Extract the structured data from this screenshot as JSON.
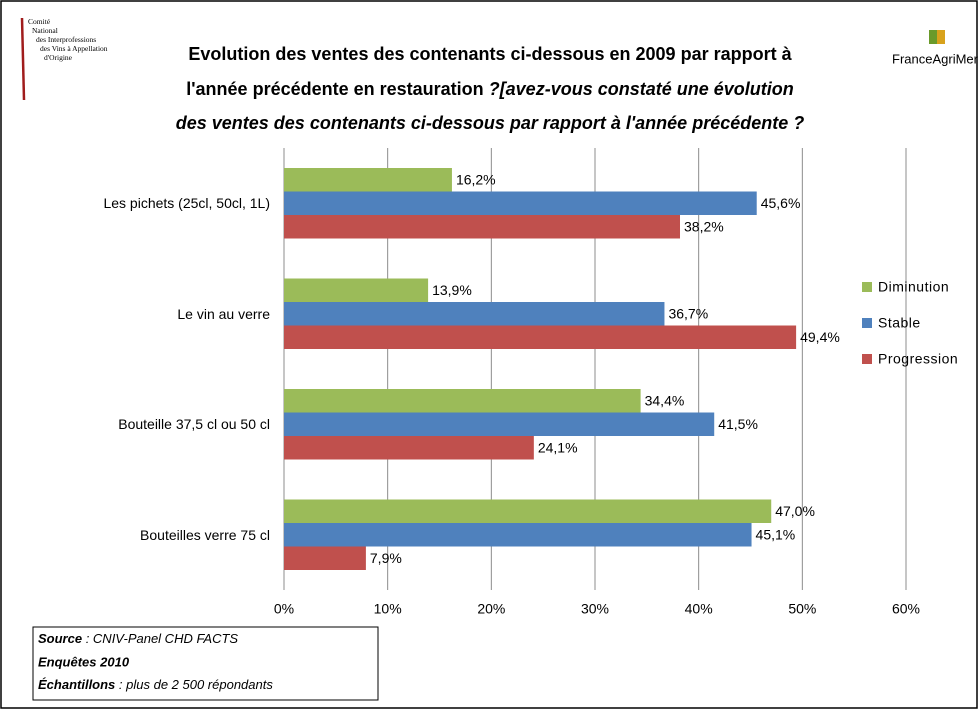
{
  "chart_data": {
    "type": "bar",
    "orientation": "horizontal",
    "title": [
      "Evolution des ventes des contenants ci-dessous  en 2009 par rapport à",
      "l'année précédente en restauration"
    ],
    "subtitle": [
      "?[avez-vous constaté une évolution",
      "des ventes des contenants ci-dessous par rapport à l'année précédente ?"
    ],
    "categories": [
      "Les pichets (25cl, 50cl, 1L)",
      "Le vin au verre",
      "Bouteille 37,5 cl ou 50 cl",
      "Bouteilles verre 75 cl"
    ],
    "series": [
      {
        "name": "Diminution",
        "color": "#9bbb59",
        "values": [
          16.2,
          13.9,
          34.4,
          47.0
        ],
        "value_labels": [
          "16,2%",
          "13,9%",
          "34,4%",
          "47,0%"
        ]
      },
      {
        "name": "Stable",
        "color": "#4f81bd",
        "values": [
          45.6,
          36.7,
          41.5,
          45.1
        ],
        "value_labels": [
          "45,6%",
          "36,7%",
          "41,5%",
          "45,1%"
        ]
      },
      {
        "name": "Progression",
        "color": "#c0504d",
        "values": [
          38.2,
          49.4,
          24.1,
          7.9
        ],
        "value_labels": [
          "38,2%",
          "49,4%",
          "24,1%",
          "7,9%"
        ]
      }
    ],
    "xlim": [
      0,
      60
    ],
    "xticks": [
      {
        "value": 0,
        "label": "0%"
      },
      {
        "value": 10,
        "label": "10%"
      },
      {
        "value": 20,
        "label": "20%"
      },
      {
        "value": 30,
        "label": "30%"
      },
      {
        "value": 40,
        "label": "40%"
      },
      {
        "value": 50,
        "label": "50%"
      },
      {
        "value": 60,
        "label": "60%"
      }
    ],
    "grid": true,
    "legend": "right"
  },
  "source": {
    "label": "Source",
    "text": " : CNIV-Panel  CHD FACTS"
  },
  "survey": "Enquêtes 2010",
  "sample": {
    "label": "Échantillons",
    "text": " :  plus de 2 500 répondants"
  },
  "logo_left": [
    "Comité",
    "National",
    "des Interprofessions",
    "des Vins à Appellation",
    "d'Origine"
  ],
  "logo_right": "FranceAgriMer"
}
